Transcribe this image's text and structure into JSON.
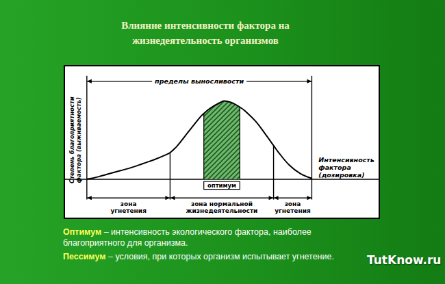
{
  "slide": {
    "title": "Влияние интенсивности фактора на\nжизнедеятельность организмов",
    "definitions": [
      {
        "term": "Оптимум",
        "text": " – интенсивность экологического фактора, наиболее благоприятного для организма."
      },
      {
        "term": "Пессимум",
        "text": " – условия, при которых организм испытывает угнетение."
      }
    ],
    "watermark": "TutKnow.ru"
  },
  "chart_data": {
    "type": "line",
    "x_label": "Интенсивность\nфактора\n(дозировка)",
    "y_label": "Степень благоприятности\nфактора (выживаемость)",
    "x": [
      0,
      5,
      10,
      15,
      20,
      25,
      30,
      35,
      37,
      40,
      45,
      50,
      52,
      55,
      60,
      61,
      65,
      68,
      70,
      75,
      80,
      83,
      85,
      90,
      95,
      100
    ],
    "values": [
      0,
      3,
      7,
      11,
      15,
      20,
      25,
      31,
      34,
      42,
      60,
      78,
      84,
      91,
      99,
      100,
      97,
      92,
      88,
      74,
      55,
      43,
      35,
      18,
      7,
      1
    ],
    "color": "#000000",
    "xlim": [
      -10,
      130
    ],
    "ylim": [
      -50,
      145
    ],
    "tick_labels": false,
    "grid": false,
    "tolerance_limits": {
      "label": "пределы выносливости",
      "from": 0,
      "to": 100
    },
    "zones": [
      {
        "label": "зона\nугнетения",
        "from": 0,
        "to": 37
      },
      {
        "label": "зона нормальной\nжизнедеятельности",
        "from": 37,
        "to": 83
      },
      {
        "label": "зона\nугнетения",
        "from": 83,
        "to": 100
      }
    ],
    "optimum": {
      "label": "оптимум",
      "from": 52,
      "to": 68
    }
  }
}
